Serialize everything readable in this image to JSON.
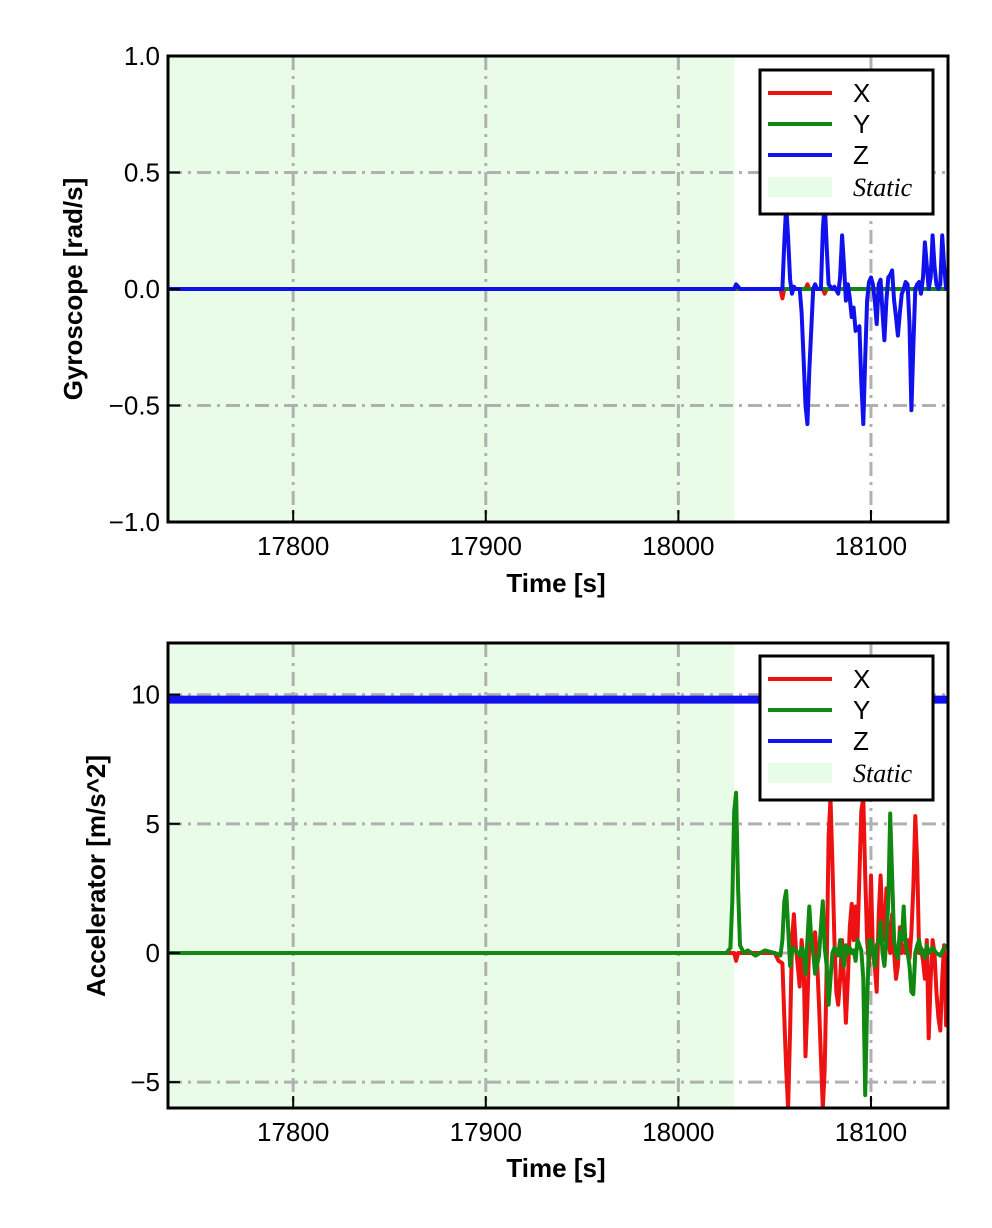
{
  "chart_data": [
    {
      "type": "line",
      "xlabel": "Time [s]",
      "ylabel": "Gyroscope [rad/s]",
      "xlim": [
        17735,
        18140
      ],
      "ylim": [
        -1.0,
        1.0
      ],
      "xticks": [
        17800,
        17900,
        18000,
        18100
      ],
      "xtick_labels": [
        "17800",
        "17900",
        "18000",
        "18100"
      ],
      "yticks": [
        -1.0,
        -0.5,
        0.0,
        0.5,
        1.0
      ],
      "ytick_labels": [
        "−1.0",
        "−0.5",
        "0.0",
        "0.5",
        "1.0"
      ],
      "grid": true,
      "legend_position": "top-right",
      "static_region": {
        "label": "Static",
        "x_start": 17735,
        "x_end": 18029,
        "color": "#e8fce8"
      },
      "series": [
        {
          "name": "X",
          "color": "#ee1111",
          "x": [
            17735,
            18029,
            18053,
            18054,
            18055,
            18066,
            18067,
            18068,
            18075,
            18076,
            18077,
            18140
          ],
          "y": [
            0,
            0,
            0,
            -0.04,
            0,
            0,
            0.02,
            0,
            0,
            -0.02,
            0,
            0
          ]
        },
        {
          "name": "Y",
          "color": "#118811",
          "x": [
            17735,
            18140
          ],
          "y": [
            0,
            0
          ]
        },
        {
          "name": "Z",
          "color": "#1111ee",
          "x": [
            17735,
            18029,
            18030,
            18031,
            18032,
            18054,
            18055,
            18056,
            18057,
            18058,
            18059,
            18060,
            18061,
            18063,
            18064,
            18065,
            18066,
            18067,
            18068,
            18070,
            18071,
            18072,
            18074,
            18075,
            18076,
            18077,
            18078,
            18079,
            18080,
            18081,
            18083,
            18084,
            18085,
            18086,
            18087,
            18088,
            18089,
            18090,
            18091,
            18092,
            18093,
            18094,
            18095,
            18096,
            18097,
            18098,
            18099,
            18100,
            18101,
            18102,
            18103,
            18104,
            18105,
            18106,
            18107,
            18108,
            18109,
            18110,
            18111,
            18112,
            18113,
            18114,
            18115,
            18116,
            18117,
            18118,
            18119,
            18120,
            18121,
            18122,
            18123,
            18124,
            18125,
            18126,
            18127,
            18128,
            18129,
            18130,
            18131,
            18132,
            18133,
            18134,
            18135,
            18136,
            18137,
            18138,
            18139,
            18140
          ],
          "y": [
            0,
            0,
            0.02,
            0.01,
            0,
            0,
            0.2,
            0.36,
            0.22,
            0.04,
            -0.02,
            0.01,
            0,
            0,
            -0.1,
            -0.3,
            -0.5,
            -0.58,
            -0.35,
            0,
            0.02,
            0,
            0,
            0.25,
            0.38,
            0.18,
            0.02,
            0.01,
            0,
            0.01,
            -0.02,
            0.05,
            0.23,
            0.1,
            -0.05,
            0.02,
            -0.04,
            -0.12,
            -0.08,
            -0.18,
            -0.17,
            -0.16,
            -0.4,
            -0.58,
            -0.3,
            -0.05,
            0.03,
            0.05,
            0.02,
            -0.05,
            -0.15,
            0.02,
            0.04,
            -0.1,
            -0.22,
            -0.05,
            0.05,
            0.06,
            0.08,
            -0.05,
            -0.12,
            -0.2,
            -0.1,
            -0.02,
            0.0,
            0.03,
            0.02,
            -0.15,
            -0.52,
            -0.25,
            0.0,
            0.02,
            0.03,
            -0.02,
            0.05,
            0.2,
            0.1,
            0.0,
            0.05,
            0.23,
            0.1,
            0.02,
            0.0,
            0.02,
            0.23,
            0.1,
            0.0,
            0.01
          ]
        }
      ]
    },
    {
      "type": "line",
      "xlabel": "Time [s]",
      "ylabel": "Accelerator [m/s^2]",
      "xlim": [
        17735,
        18140
      ],
      "ylim": [
        -6,
        12
      ],
      "xticks": [
        17800,
        17900,
        18000,
        18100
      ],
      "xtick_labels": [
        "17800",
        "17900",
        "18000",
        "18100"
      ],
      "yticks": [
        -5,
        0,
        5,
        10
      ],
      "ytick_labels": [
        "−5",
        "0",
        "5",
        "10"
      ],
      "grid": true,
      "legend_position": "top-right",
      "static_region": {
        "label": "Static",
        "x_start": 17735,
        "x_end": 18029,
        "color": "#e8fce8"
      },
      "series": [
        {
          "name": "X",
          "color": "#ee1111",
          "x": [
            17735,
            18029,
            18030,
            18031,
            18050,
            18052,
            18054,
            18055,
            18056,
            18057,
            18058,
            18059,
            18060,
            18061,
            18062,
            18063,
            18064,
            18065,
            18066,
            18067,
            18068,
            18069,
            18070,
            18071,
            18072,
            18073,
            18074,
            18075,
            18076,
            18077,
            18078,
            18079,
            18080,
            18081,
            18082,
            18083,
            18084,
            18085,
            18086,
            18087,
            18088,
            18089,
            18090,
            18091,
            18092,
            18093,
            18094,
            18095,
            18096,
            18097,
            18098,
            18099,
            18100,
            18101,
            18102,
            18103,
            18104,
            18105,
            18106,
            18107,
            18108,
            18109,
            18110,
            18111,
            18112,
            18113,
            18114,
            18115,
            18116,
            18117,
            18118,
            18119,
            18120,
            18121,
            18122,
            18123,
            18124,
            18125,
            18126,
            18127,
            18128,
            18129,
            18130,
            18131,
            18132,
            18133,
            18134,
            18135,
            18136,
            18137,
            18138,
            18139,
            18140
          ],
          "y": [
            0,
            0,
            -0.3,
            0,
            0,
            -0.3,
            -0.4,
            -2.5,
            -4.5,
            -6,
            -3,
            0.5,
            1.5,
            0.2,
            -0.5,
            -1.3,
            0.5,
            -0.3,
            -4,
            -2,
            0.5,
            0.3,
            0.5,
            0.8,
            -0.2,
            -2.0,
            -4.0,
            -6,
            -4.5,
            -0.5,
            4.5,
            6,
            3.5,
            0.5,
            -1.5,
            -2.0,
            -1.0,
            0.5,
            -1.0,
            -2.7,
            -1.0,
            1.0,
            1.9,
            0.5,
            1.8,
            0.5,
            3.0,
            5.5,
            6.0,
            3.0,
            0.5,
            -0.5,
            3.0,
            0.0,
            -0.5,
            -1.5,
            1.5,
            3.0,
            1.0,
            0.5,
            2.5,
            0.5,
            0.0,
            1.5,
            0.0,
            -1.0,
            -0.5,
            1.0,
            0.0,
            0.3,
            0.0,
            0.5,
            -0.2,
            0.8,
            2.5,
            5.3,
            3.5,
            0.0,
            0.2,
            -0.3,
            -1.0,
            0.5,
            -3.3,
            -1.0,
            0.5,
            0.0,
            -1.5,
            -2.5,
            -3.0,
            -1.0,
            0.3,
            -2.8,
            -1.0
          ]
        },
        {
          "name": "Y",
          "color": "#118811",
          "x": [
            17735,
            18025,
            18027,
            18028,
            18029,
            18030,
            18031,
            18032,
            18034,
            18036,
            18040,
            18045,
            18050,
            18053,
            18054,
            18055,
            18056,
            18057,
            18058,
            18059,
            18060,
            18062,
            18063,
            18064,
            18065,
            18066,
            18067,
            18068,
            18069,
            18070,
            18071,
            18073,
            18074,
            18075,
            18076,
            18077,
            18078,
            18079,
            18080,
            18081,
            18083,
            18084,
            18085,
            18086,
            18087,
            18088,
            18089,
            18090,
            18091,
            18092,
            18093,
            18094,
            18095,
            18096,
            18097,
            18098,
            18099,
            18100,
            18101,
            18102,
            18103,
            18104,
            18105,
            18106,
            18107,
            18108,
            18109,
            18110,
            18111,
            18112,
            18113,
            18114,
            18115,
            18116,
            18117,
            18118,
            18119,
            18120,
            18121,
            18122,
            18123,
            18124,
            18125,
            18126,
            18127,
            18128,
            18129,
            18130,
            18132,
            18134,
            18136,
            18138,
            18140
          ],
          "y": [
            0,
            0,
            0.2,
            2.0,
            5.5,
            6.2,
            2.5,
            0.3,
            0.0,
            0.1,
            -0.1,
            0.1,
            0.0,
            -0.1,
            0.5,
            2.0,
            2.4,
            1.0,
            -0.5,
            0.0,
            0.2,
            0.0,
            -0.1,
            0.2,
            0.0,
            -0.8,
            0.5,
            1.8,
            0.5,
            0.0,
            -0.8,
            -0.1,
            1.0,
            2.0,
            0.2,
            -0.5,
            -2.0,
            -1.0,
            0.0,
            0.2,
            -0.1,
            0.5,
            0.0,
            -0.5,
            0.3,
            0.0,
            0.2,
            0.0,
            0.1,
            -0.3,
            0.5,
            0.3,
            0.1,
            -1.0,
            -5.5,
            -2.0,
            0.5,
            0.5,
            0.0,
            -0.5,
            0.3,
            0.5,
            1.2,
            0.0,
            -0.5,
            0.5,
            2.0,
            5.4,
            3.0,
            0.5,
            0.0,
            -0.2,
            0.8,
            0.5,
            1.8,
            0.3,
            0.0,
            -0.5,
            -1.5,
            -1.6,
            0.0,
            0.3,
            0.5,
            0.0,
            0.1,
            -0.2,
            0.3,
            0.0,
            0.2,
            0.0,
            -0.1,
            0.2,
            0.3
          ]
        },
        {
          "name": "Z",
          "color": "#1111ee",
          "x": [
            17735,
            18140
          ],
          "y": [
            9.81,
            9.81
          ]
        }
      ]
    }
  ]
}
